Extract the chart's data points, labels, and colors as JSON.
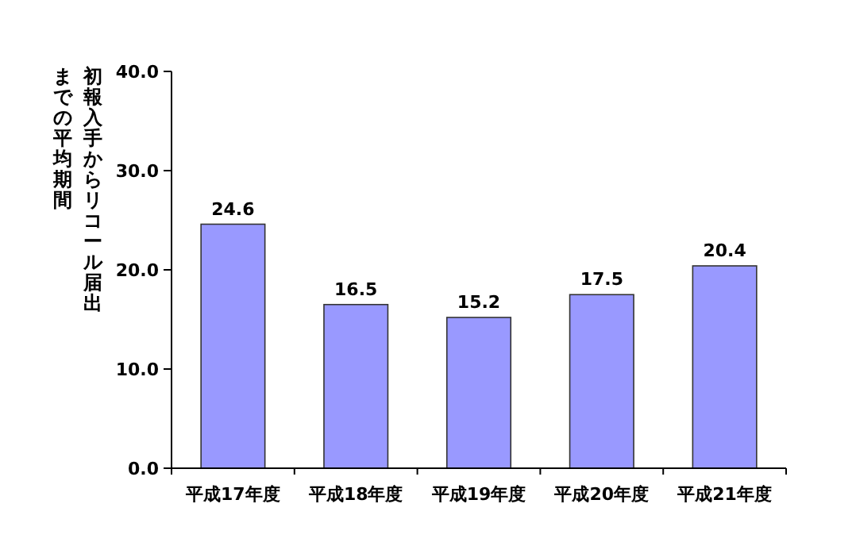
{
  "chart_data": {
    "type": "bar",
    "ylabel": "初報入手からリコール届出までの平均期間",
    "categories": [
      "平成17年度",
      "平成18年度",
      "平成19年度",
      "平成20年度",
      "平成21年度"
    ],
    "values": [
      24.6,
      16.5,
      15.2,
      17.5,
      20.4
    ],
    "color": "#9999ff",
    "ylim": [
      0,
      40
    ],
    "yticks": [
      {
        "value": 0,
        "label": "0.0"
      },
      {
        "value": 10,
        "label": "10.0"
      },
      {
        "value": 20,
        "label": "20.0"
      },
      {
        "value": 30,
        "label": "30.0"
      },
      {
        "value": 40,
        "label": "40.0"
      }
    ],
    "data_labels": true,
    "grid": false
  }
}
